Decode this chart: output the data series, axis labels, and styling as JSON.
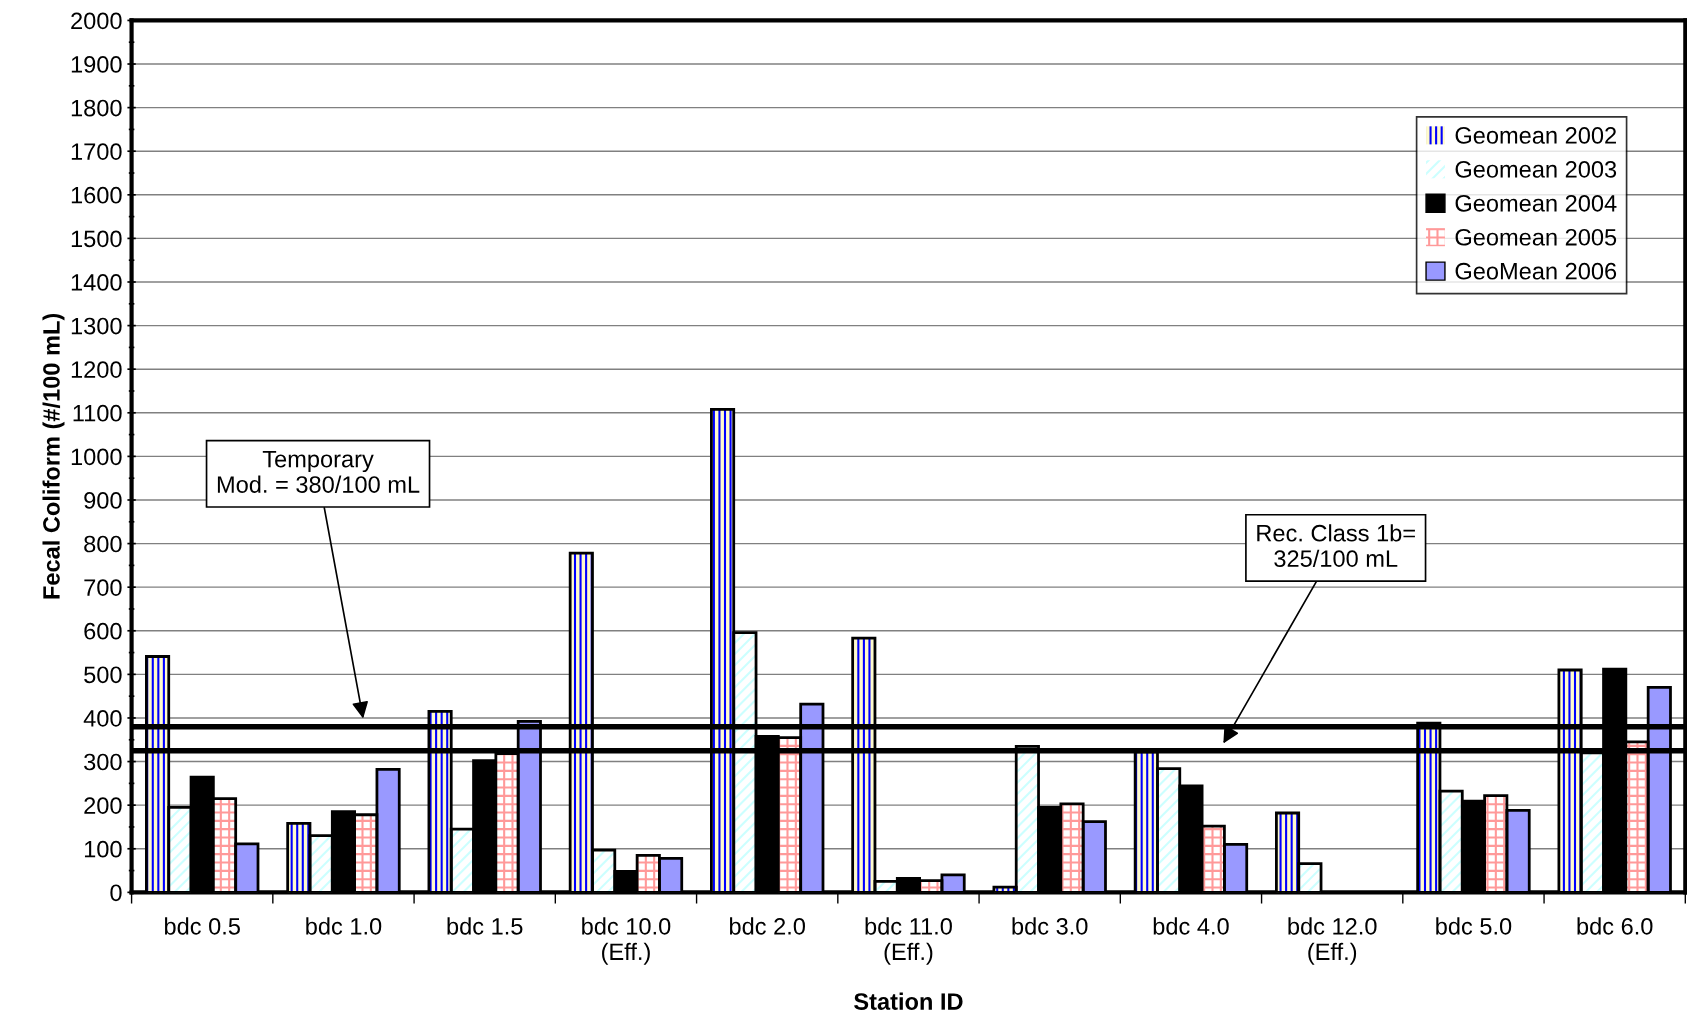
{
  "chart_data": {
    "type": "bar",
    "xlabel": "Station ID",
    "ylabel": "Fecal Coliform (#/100 mL)",
    "categories": [
      "bdc 0.5",
      "bdc 1.0",
      "bdc 1.5",
      "bdc 10.0\n(Eff.)",
      "bdc 2.0",
      "bdc 11.0\n(Eff.)",
      "bdc 3.0",
      "bdc 4.0",
      "bdc 12.0\n(Eff.)",
      "bdc 5.0",
      "bdc 6.0"
    ],
    "series": [
      {
        "name": "Geomean 2002",
        "color": "#0000ff",
        "values": [
          541,
          158,
          415,
          778,
          1108,
          583,
          12,
          322,
          182,
          388,
          510
        ]
      },
      {
        "name": "Geomean 2003",
        "color": "#ccffff",
        "values": [
          195,
          130,
          145,
          97,
          596,
          25,
          335,
          284,
          66,
          232,
          320
        ]
      },
      {
        "name": "Geomean 2004",
        "color": "#000000",
        "values": [
          264,
          185,
          302,
          48,
          358,
          32,
          195,
          244,
          null,
          209,
          512
        ]
      },
      {
        "name": "Geomean 2005",
        "color": "#ff9999",
        "values": [
          215,
          178,
          318,
          85,
          355,
          27,
          203,
          152,
          null,
          222,
          345
        ]
      },
      {
        "name": "GeoMean 2006",
        "color": "#9999ff",
        "values": [
          111,
          282,
          392,
          78,
          432,
          40,
          162,
          110,
          null,
          188,
          470
        ]
      }
    ],
    "ylim": [
      0,
      2000
    ],
    "yticks": [
      0,
      100,
      200,
      300,
      400,
      500,
      600,
      700,
      800,
      900,
      1000,
      1100,
      1200,
      1300,
      1400,
      1500,
      1600,
      1700,
      1800,
      1900,
      2000
    ],
    "grid": "y",
    "legend": "top right",
    "ref_lines": [
      {
        "axis": "y",
        "value": 380,
        "label": "Temporary\nMod. = 380/100 mL",
        "color": "#000000"
      },
      {
        "axis": "y",
        "value": 325,
        "label": "Rec. Class 1b=\n325/100 mL",
        "color": "#000000"
      }
    ]
  }
}
